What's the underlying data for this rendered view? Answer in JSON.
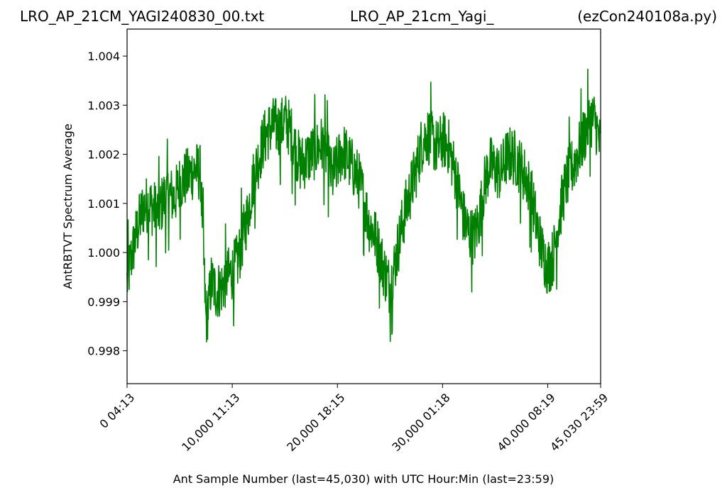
{
  "chart_data": {
    "type": "line",
    "title_left": "LRO_AP_21CM_YAGI240830_00.txt",
    "title_center": "LRO_AP_21cm_Yagi_",
    "title_right": "(ezCon240108a.py)",
    "xlabel": "Ant Sample Number (last=45,030) with UTC Hour:Min (last=23:59)",
    "ylabel": "AntRBTVT Spectrum Average",
    "xlim": [
      0,
      45030
    ],
    "ylim": [
      0.99733,
      1.00455
    ],
    "x_ticks": [
      {
        "value": 0,
        "label": "0  04:13"
      },
      {
        "value": 10000,
        "label": "10,000  11:13"
      },
      {
        "value": 20000,
        "label": "20,000  18:15"
      },
      {
        "value": 30000,
        "label": "30,000  01:18"
      },
      {
        "value": 40000,
        "label": "40,000  08:19"
      },
      {
        "value": 45030,
        "label": "45,030  23:59"
      }
    ],
    "y_ticks": [
      {
        "value": 0.998,
        "label": "0.998"
      },
      {
        "value": 0.999,
        "label": "0.999"
      },
      {
        "value": 1.0,
        "label": "1.000"
      },
      {
        "value": 1.001,
        "label": "1.001"
      },
      {
        "value": 1.002,
        "label": "1.002"
      },
      {
        "value": 1.003,
        "label": "1.003"
      },
      {
        "value": 1.004,
        "label": "1.004"
      }
    ],
    "series_color": "#008000",
    "grid": false,
    "series": [
      {
        "x": [
          0,
          400,
          900,
          1500,
          2000,
          2500,
          3000,
          3500,
          4000,
          4500,
          5000,
          5500,
          6000,
          6500,
          7000,
          7500,
          7800,
          8000,
          8500,
          9000,
          9500,
          10000,
          10500,
          11000,
          11500,
          12000,
          12500,
          13000,
          13500,
          14000,
          14500,
          15000,
          15500,
          16000,
          16500,
          17000,
          17500,
          18000,
          18500,
          19000,
          19500,
          20000,
          20500,
          21000,
          21500,
          22000,
          22500,
          23000,
          23500,
          24000,
          24500,
          25000,
          25500,
          26000,
          26500,
          27000,
          27500,
          28000,
          28500,
          29000,
          29500,
          30000,
          30500,
          31000,
          31500,
          32000,
          32500,
          33000,
          33500,
          34000,
          34500,
          35000,
          35500,
          36000,
          36500,
          37000,
          37500,
          38000,
          38500,
          39000,
          39500,
          40000,
          40500,
          41000,
          41500,
          42000,
          42500,
          43000,
          43500,
          44000,
          44500,
          45030
        ],
        "y": [
          0.9994,
          0.9999,
          1.0004,
          1.0009,
          1.001,
          1.0009,
          1.0008,
          1.0011,
          1.0012,
          1.0011,
          1.0014,
          1.0015,
          1.0016,
          1.0017,
          1.0016,
          0.9986,
          0.999,
          0.9994,
          0.9992,
          0.9993,
          0.9995,
          0.9996,
          0.9998,
          1.0003,
          1.0008,
          1.0015,
          1.0019,
          1.0023,
          1.0025,
          1.0026,
          1.0025,
          1.0027,
          1.0025,
          1.0021,
          1.0018,
          1.0019,
          1.002,
          1.0021,
          1.0022,
          1.002,
          1.0015,
          1.0018,
          1.0021,
          1.0019,
          1.0017,
          1.0015,
          1.0011,
          1.0006,
          1.0004,
          1.0,
          0.9996,
          0.9993,
          0.9998,
          1.0004,
          1.0009,
          1.0013,
          1.0017,
          1.0022,
          1.0024,
          1.0023,
          1.0021,
          1.0023,
          1.0022,
          1.0018,
          1.0013,
          1.0007,
          1.0004,
          1.0003,
          1.0007,
          1.0014,
          1.0018,
          1.0017,
          1.0016,
          1.0019,
          1.002,
          1.0019,
          1.0017,
          1.0015,
          1.0011,
          1.0005,
          1.0,
          0.9997,
          0.9999,
          1.0006,
          1.0012,
          1.0016,
          1.0018,
          1.0021,
          1.0024,
          1.0027,
          1.0027,
          1.0021
        ]
      }
    ]
  }
}
